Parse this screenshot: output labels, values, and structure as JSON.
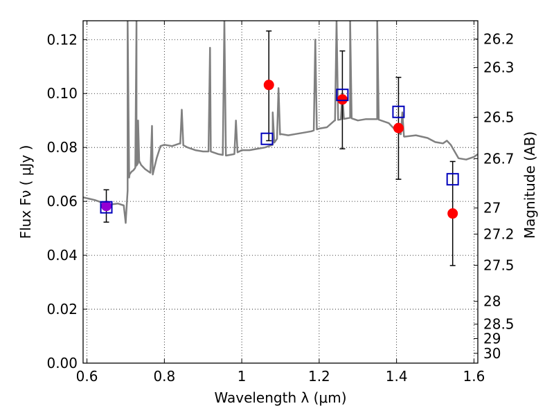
{
  "chart_data": {
    "type": "scatter",
    "xlabel": "Wavelength  λ (μm)",
    "ylabel": "Flux  Fν ( μJy )",
    "ylabel_right": "Magnitude (AB)",
    "xlim": [
      0.59,
      1.61
    ],
    "ylim": [
      0.0,
      0.127
    ],
    "grid": true,
    "x_ticks": [
      0.6,
      0.8,
      1.0,
      1.2,
      1.4,
      1.6
    ],
    "x_tick_labels": [
      "0.6",
      "0.8",
      "1",
      "1.2",
      "1.4",
      "1.6"
    ],
    "y_ticks": [
      0.0,
      0.02,
      0.04,
      0.06,
      0.08,
      0.1,
      0.12
    ],
    "y_tick_labels": [
      "0.00",
      "0.02",
      "0.04",
      "0.06",
      "0.08",
      "0.10",
      "0.12"
    ],
    "right_ticks": [
      {
        "mag": 26.2,
        "label": "26.2"
      },
      {
        "mag": 26.3,
        "label": "26.3"
      },
      {
        "mag": 26.5,
        "label": "26.5"
      },
      {
        "mag": 26.7,
        "label": "26.7"
      },
      {
        "mag": 27.0,
        "label": "27"
      },
      {
        "mag": 27.2,
        "label": "27.2"
      },
      {
        "mag": 27.5,
        "label": "27.5"
      },
      {
        "mag": 28.0,
        "label": "28"
      },
      {
        "mag": 28.5,
        "label": "28.5"
      },
      {
        "mag": 29.0,
        "label": "29"
      },
      {
        "mag": 30.0,
        "label": "30"
      }
    ],
    "observed": {
      "x": [
        0.65,
        1.07,
        1.26,
        1.405,
        1.545
      ],
      "y": [
        0.0583,
        0.1032,
        0.0978,
        0.0872,
        0.0555
      ],
      "yerr_low": [
        0.0523,
        0.0825,
        0.0795,
        0.0682,
        0.0362
      ],
      "yerr_high": [
        0.0643,
        0.1232,
        0.1158,
        0.106,
        0.0748
      ],
      "colors": [
        "#9400d3",
        "#ff0000",
        "#ff0000",
        "#ff0000",
        "#ff0000"
      ]
    },
    "model": {
      "x": [
        0.65,
        1.065,
        1.26,
        1.405,
        1.545
      ],
      "y": [
        0.0578,
        0.0832,
        0.0995,
        0.0932,
        0.0682
      ],
      "color": "#0000bb"
    },
    "spectrum": {
      "color": "#808080",
      "x": [
        0.59,
        0.62,
        0.64,
        0.66,
        0.68,
        0.695,
        0.7,
        0.705,
        0.71,
        0.715,
        0.72,
        0.725,
        0.735,
        0.74,
        0.75,
        0.76,
        0.77,
        0.78,
        0.79,
        0.8,
        0.82,
        0.84,
        0.86,
        0.88,
        0.9,
        0.92,
        0.94,
        0.96,
        0.98,
        1.0,
        1.02,
        1.04,
        1.06,
        1.08,
        1.1,
        1.12,
        1.14,
        1.16,
        1.18,
        1.2,
        1.22,
        1.24,
        1.28,
        1.3,
        1.32,
        1.35,
        1.38,
        1.4,
        1.42,
        1.45,
        1.48,
        1.5,
        1.52,
        1.53,
        1.54,
        1.56,
        1.58,
        1.6,
        1.61
      ],
      "y": [
        0.0615,
        0.0605,
        0.0595,
        0.0588,
        0.0592,
        0.0585,
        0.052,
        0.064,
        0.07,
        0.071,
        0.0715,
        0.0725,
        0.075,
        0.0735,
        0.072,
        0.071,
        0.07,
        0.076,
        0.0805,
        0.081,
        0.0805,
        0.0815,
        0.08,
        0.079,
        0.0785,
        0.0785,
        0.0775,
        0.077,
        0.0775,
        0.079,
        0.079,
        0.0795,
        0.08,
        0.081,
        0.085,
        0.0845,
        0.085,
        0.0855,
        0.086,
        0.087,
        0.0875,
        0.09,
        0.091,
        0.09,
        0.0905,
        0.0905,
        0.089,
        0.086,
        0.084,
        0.0845,
        0.0835,
        0.082,
        0.0815,
        0.0825,
        0.081,
        0.076,
        0.0755,
        0.0765,
        0.0775
      ],
      "peaks": [
        {
          "x": 0.705,
          "y": 0.127
        },
        {
          "x": 0.728,
          "y": 0.127
        },
        {
          "x": 0.732,
          "y": 0.09
        },
        {
          "x": 0.768,
          "y": 0.088
        },
        {
          "x": 0.845,
          "y": 0.094
        },
        {
          "x": 0.918,
          "y": 0.117
        },
        {
          "x": 0.955,
          "y": 0.127
        },
        {
          "x": 0.985,
          "y": 0.09
        },
        {
          "x": 1.08,
          "y": 0.093
        },
        {
          "x": 1.095,
          "y": 0.102
        },
        {
          "x": 1.19,
          "y": 0.12
        },
        {
          "x": 1.245,
          "y": 0.127
        },
        {
          "x": 1.26,
          "y": 0.1
        },
        {
          "x": 1.28,
          "y": 0.127
        },
        {
          "x": 1.35,
          "y": 0.127
        },
        {
          "x": 1.415,
          "y": 0.093
        }
      ]
    }
  }
}
